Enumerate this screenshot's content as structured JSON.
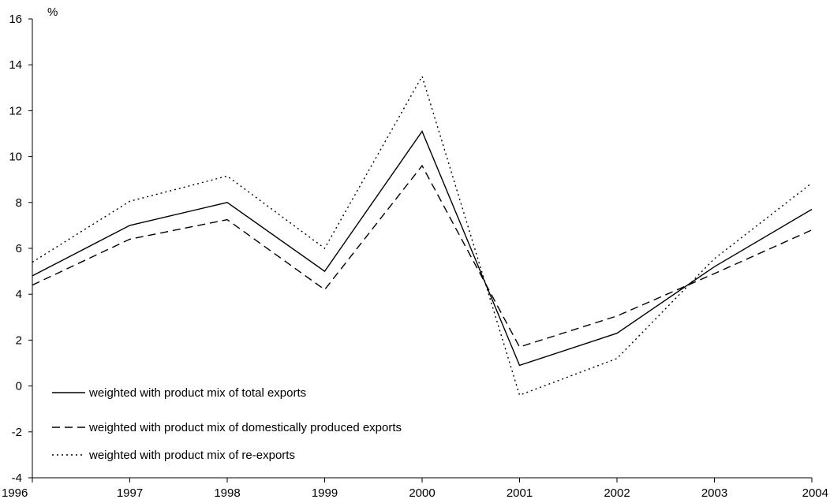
{
  "chart_data": {
    "type": "line",
    "title": "",
    "xlabel": "",
    "ylabel": "%",
    "categories": [
      "1996",
      "1997",
      "1998",
      "1999",
      "2000",
      "2001",
      "2002",
      "2003",
      "2004"
    ],
    "ylim": [
      -4,
      16
    ],
    "yticks": [
      "-4",
      "-2",
      "0",
      "2",
      "4",
      "6",
      "8",
      "10",
      "12",
      "14",
      "16"
    ],
    "grid": false,
    "legend_position": "bottom-left",
    "series": [
      {
        "name": "weighted with product mix of total exports",
        "style": "solid",
        "color": "#000000",
        "values": [
          4.8,
          7.0,
          8.0,
          5.0,
          11.1,
          0.9,
          2.3,
          5.2,
          7.7
        ]
      },
      {
        "name": "weighted with product mix of domestically produced exports",
        "style": "dashed",
        "color": "#000000",
        "values": [
          4.4,
          6.4,
          7.25,
          4.2,
          9.6,
          1.7,
          3.05,
          4.9,
          6.8
        ]
      },
      {
        "name": "weighted with product mix of re-exports",
        "style": "dotted",
        "color": "#000000",
        "values": [
          5.4,
          8.05,
          9.15,
          6.0,
          13.5,
          -0.4,
          1.2,
          5.55,
          8.85
        ]
      }
    ]
  }
}
